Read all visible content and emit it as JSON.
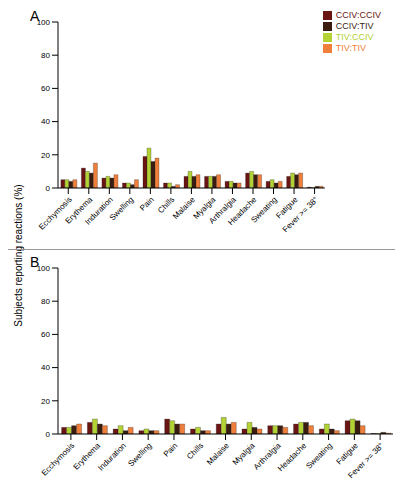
{
  "chart_data": [
    {
      "type": "bar",
      "title": "A",
      "y_label": "Subjects reporting reactions (%)",
      "legend": "top right",
      "categories": [
        "Ecchymosis",
        "Erythema",
        "Induration",
        "Swelling",
        "Pain",
        "Chills",
        "Malaise",
        "Myalgia",
        "Arthralgia",
        "Headache",
        "Sweating",
        "Fatigue",
        "Fever >= 38°"
      ],
      "ylim": [
        0,
        100
      ],
      "yticks": [
        0,
        20,
        40,
        60,
        80,
        100
      ],
      "series": [
        {
          "name": "CCIV:CCIV",
          "color": "#6b1414",
          "values": [
            5,
            12,
            6,
            3,
            19,
            3,
            7,
            7,
            4,
            9,
            4,
            7,
            0.5
          ]
        },
        {
          "name": "TIV:CCIV",
          "color": "#b3d334",
          "values": [
            5,
            10,
            7,
            3,
            24,
            3,
            10,
            7,
            4,
            10,
            5,
            9,
            0.3
          ]
        },
        {
          "name": "CCIV:TIV",
          "color": "#3a1d10",
          "values": [
            4,
            9,
            6,
            2,
            16,
            1,
            7,
            7,
            3,
            8,
            3,
            8,
            1
          ]
        },
        {
          "name": "TIV:TIV",
          "color": "#f07f3c",
          "values": [
            5,
            15,
            8,
            5,
            18,
            2,
            8,
            8,
            3,
            8,
            4,
            9,
            1
          ]
        }
      ]
    },
    {
      "type": "bar",
      "title": "B",
      "categories": [
        "Ecchymosis",
        "Erythema",
        "Induration",
        "Swelling",
        "Pain",
        "Chills",
        "Malaise",
        "Myalgia",
        "Arthralgia",
        "Headache",
        "Sweating",
        "Fatigue",
        "Fever >= 38°"
      ],
      "ylim": [
        0,
        100
      ],
      "yticks": [
        0,
        20,
        40,
        60,
        80,
        100
      ],
      "series": [
        {
          "name": "CCIV:CCIV",
          "color": "#6b1414",
          "values": [
            4,
            7,
            3,
            2,
            9,
            3,
            6,
            3,
            5,
            6,
            3,
            8,
            0.3
          ]
        },
        {
          "name": "TIV:CCIV",
          "color": "#b3d334",
          "values": [
            4,
            9,
            5,
            3,
            8,
            4,
            10,
            7,
            5,
            7,
            6,
            9,
            0.3
          ]
        },
        {
          "name": "CCIV:TIV",
          "color": "#3a1d10",
          "values": [
            5,
            6,
            2,
            2,
            6,
            2,
            6,
            4,
            5,
            7,
            3,
            8,
            1
          ]
        },
        {
          "name": "TIV:TIV",
          "color": "#f07f3c",
          "values": [
            6,
            5,
            4,
            2,
            6,
            2,
            7,
            3,
            4,
            5,
            2,
            5,
            0.5
          ]
        }
      ]
    }
  ]
}
